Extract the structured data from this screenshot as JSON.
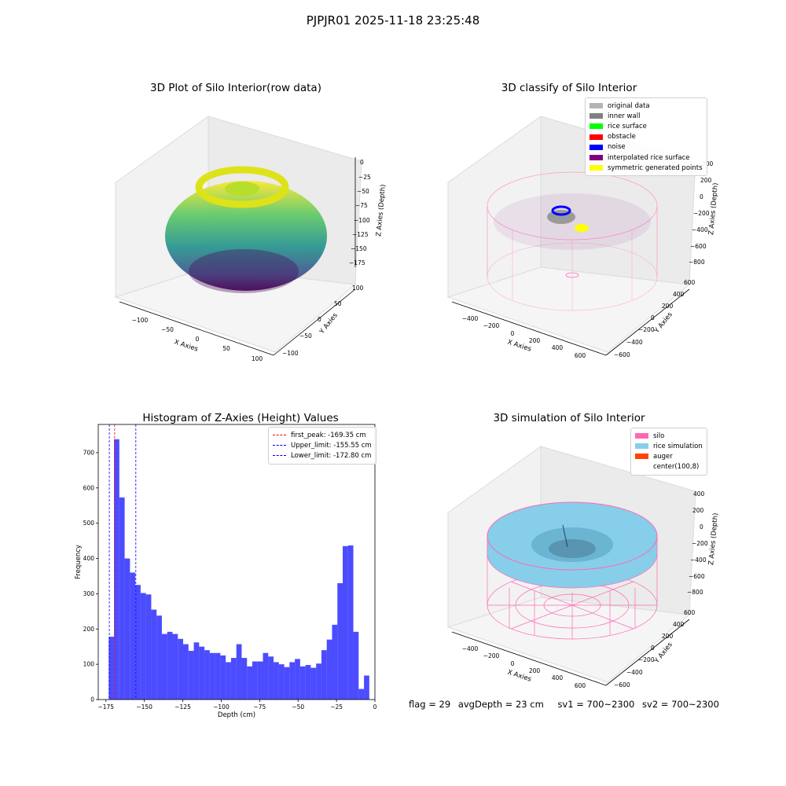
{
  "suptitle": "PJPJR01 2025-11-18 23:25:48",
  "panels": {
    "raw": {
      "title": "3D Plot of Silo Interior(row data)",
      "xlabel": "X Axies",
      "ylabel": "Y Axies",
      "zlabel": "Z Axies (Depth)",
      "xticks": [
        "−100",
        "−50",
        "0",
        "50",
        "100"
      ],
      "yticks": [
        "100",
        "50",
        "0",
        "−50",
        "−100"
      ],
      "zticks": [
        "0",
        "−25",
        "−50",
        "−75",
        "−100",
        "−125",
        "−150",
        "−175"
      ]
    },
    "classify": {
      "title": "3D classify of Silo Interior",
      "xlabel": "X Axies",
      "ylabel": "Y Axies",
      "zlabel": "Z Axies (Depth)",
      "xticks": [
        "−400",
        "−200",
        "0",
        "200",
        "400",
        "600"
      ],
      "yticks": [
        "600",
        "400",
        "200",
        "0",
        "−200",
        "−400",
        "−600"
      ],
      "zticks": [
        "200",
        "0",
        "−200",
        "−400",
        "−600",
        "−800"
      ],
      "legend": [
        {
          "label": "original data",
          "color": "#b4b4b4"
        },
        {
          "label": "inner wall",
          "color": "#808080"
        },
        {
          "label": "rice surface",
          "color": "#00ff00"
        },
        {
          "label": "obstacle",
          "color": "#ff0000"
        },
        {
          "label": "noise",
          "color": "#0000ff"
        },
        {
          "label": "interpolated rice surface",
          "color": "#800080"
        },
        {
          "label": "symmetric generated points",
          "color": "#ffff00"
        }
      ]
    },
    "simulation": {
      "title": "3D simulation of Silo Interior",
      "xlabel": "X Axies",
      "ylabel": "Y Axies",
      "zlabel": "Z Axies (Depth)",
      "xticks": [
        "−400",
        "−200",
        "0",
        "200",
        "400",
        "600"
      ],
      "yticks": [
        "600",
        "400",
        "200",
        "0",
        "−200",
        "−400",
        "−600"
      ],
      "zticks": [
        "400",
        "200",
        "0",
        "−200",
        "−400",
        "−600",
        "−800"
      ],
      "legend": [
        {
          "label": "silo",
          "color": "#ff69b4"
        },
        {
          "label": "rice simulation",
          "color": "#87ceeb"
        },
        {
          "label": "auger",
          "color": "#ff4500"
        },
        {
          "label": "center(100,8)",
          "color": "#ffffff"
        }
      ]
    }
  },
  "footer": {
    "flag": "flag = 29",
    "avg": "avgDepth = 23 cm",
    "sv1": "sv1 = 700~2300",
    "sv2": "sv2 = 700~2300"
  },
  "chart_data": {
    "type": "bar",
    "title": "Histogram of Z-Axies (Height) Values",
    "xlabel": "Depth (cm)",
    "ylabel": "Frequency",
    "xlim": [
      -180,
      0
    ],
    "ylim": [
      0,
      780
    ],
    "xticks": [
      -175,
      -150,
      -125,
      -100,
      -75,
      -50,
      -25,
      0
    ],
    "xtick_labels": [
      "−175",
      "−150",
      "−125",
      "−100",
      "−75",
      "−50",
      "−25",
      "0"
    ],
    "yticks": [
      0,
      100,
      200,
      300,
      400,
      500,
      600,
      700
    ],
    "bin_start": -173.2,
    "bin_width": 3.46,
    "values": [
      178,
      738,
      573,
      400,
      360,
      325,
      302,
      298,
      255,
      238,
      186,
      192,
      186,
      172,
      157,
      138,
      162,
      150,
      140,
      132,
      132,
      125,
      106,
      118,
      157,
      118,
      94,
      108,
      108,
      132,
      122,
      106,
      100,
      92,
      106,
      115,
      94,
      98,
      90,
      102,
      140,
      170,
      212,
      330,
      435,
      437,
      192,
      30,
      68
    ],
    "bar_color": "#0000ff",
    "bar_alpha": 0.7,
    "vlines": [
      {
        "label": "first_peak: -169.35 cm",
        "x": -169.35,
        "color": "#ff0000"
      },
      {
        "label": "Upper_limit: -155.55 cm",
        "x": -155.55,
        "color": "#0000ff"
      },
      {
        "label": "Lower_limit: -172.80 cm",
        "x": -172.8,
        "color": "#0000ff"
      }
    ]
  }
}
